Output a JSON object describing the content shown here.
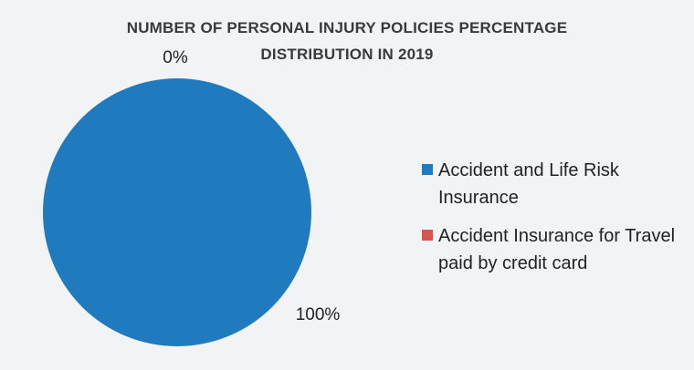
{
  "chart_data": {
    "type": "pie",
    "title": "NUMBER OF PERSONAL INJURY POLICIES PERCENTAGE DISTRIBUTION IN 2019",
    "categories": [
      "Accident and Life Risk Insurance",
      "Accident Insurance for Travel paid by credit card"
    ],
    "values": [
      100,
      0
    ],
    "data_labels": [
      "100%",
      "0%"
    ],
    "colors": [
      "#1f7bbd",
      "#d9534f"
    ],
    "legend_position": "right"
  }
}
